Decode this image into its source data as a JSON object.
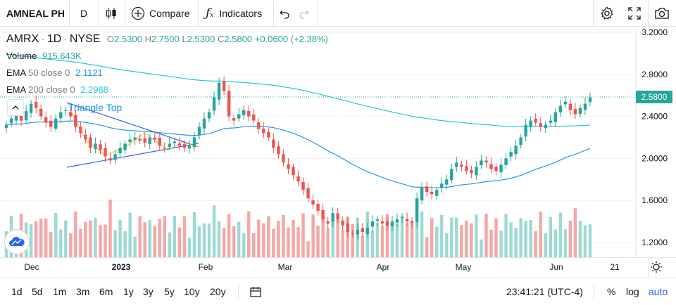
{
  "toolbar": {
    "symbol": "AMNEAL PH",
    "interval": "D",
    "compare_label": "Compare",
    "indicators_label": "Indicators"
  },
  "legend": {
    "ticker": "AMRX",
    "interval": "1D",
    "exchange": "NYSE",
    "ohlc": {
      "o_label": "O",
      "o": "2.5300",
      "h_label": "H",
      "h": "2.7500",
      "l_label": "L",
      "l": "2.5300",
      "c_label": "C",
      "c": "2.5800"
    },
    "change": "+0.0600 (+2.38%)",
    "volume_label": "Volume",
    "volume_value": "915.643K",
    "ema50_label": "EMA",
    "ema50_params": "50 close 0",
    "ema50_value": "2.1121",
    "ema200_label": "EMA",
    "ema200_params": "200 close 0",
    "ema200_value": "2.2988",
    "pattern_label": "Triangle Top"
  },
  "price_axis": {
    "labels": [
      "3.2000",
      "2.8000",
      "2.4000",
      "2.0000",
      "1.6000",
      "1.2000"
    ],
    "current_price": "2.5800"
  },
  "time_axis": {
    "labels": [
      "Dec",
      "2023",
      "Feb",
      "Mar",
      "Apr",
      "May",
      "Jun",
      "21"
    ]
  },
  "bottom": {
    "ranges": [
      "1d",
      "5d",
      "1m",
      "3m",
      "6m",
      "1y",
      "3y",
      "5y",
      "10y",
      "20y"
    ],
    "clock": "23:41:21 (UTC-4)",
    "percent_label": "%",
    "log_label": "log",
    "auto_label": "auto"
  },
  "colors": {
    "up": "#26a69a",
    "down": "#ef5350",
    "ema50": "#2196f3",
    "ema200": "#26c6da",
    "accent": "#2962ff"
  }
}
